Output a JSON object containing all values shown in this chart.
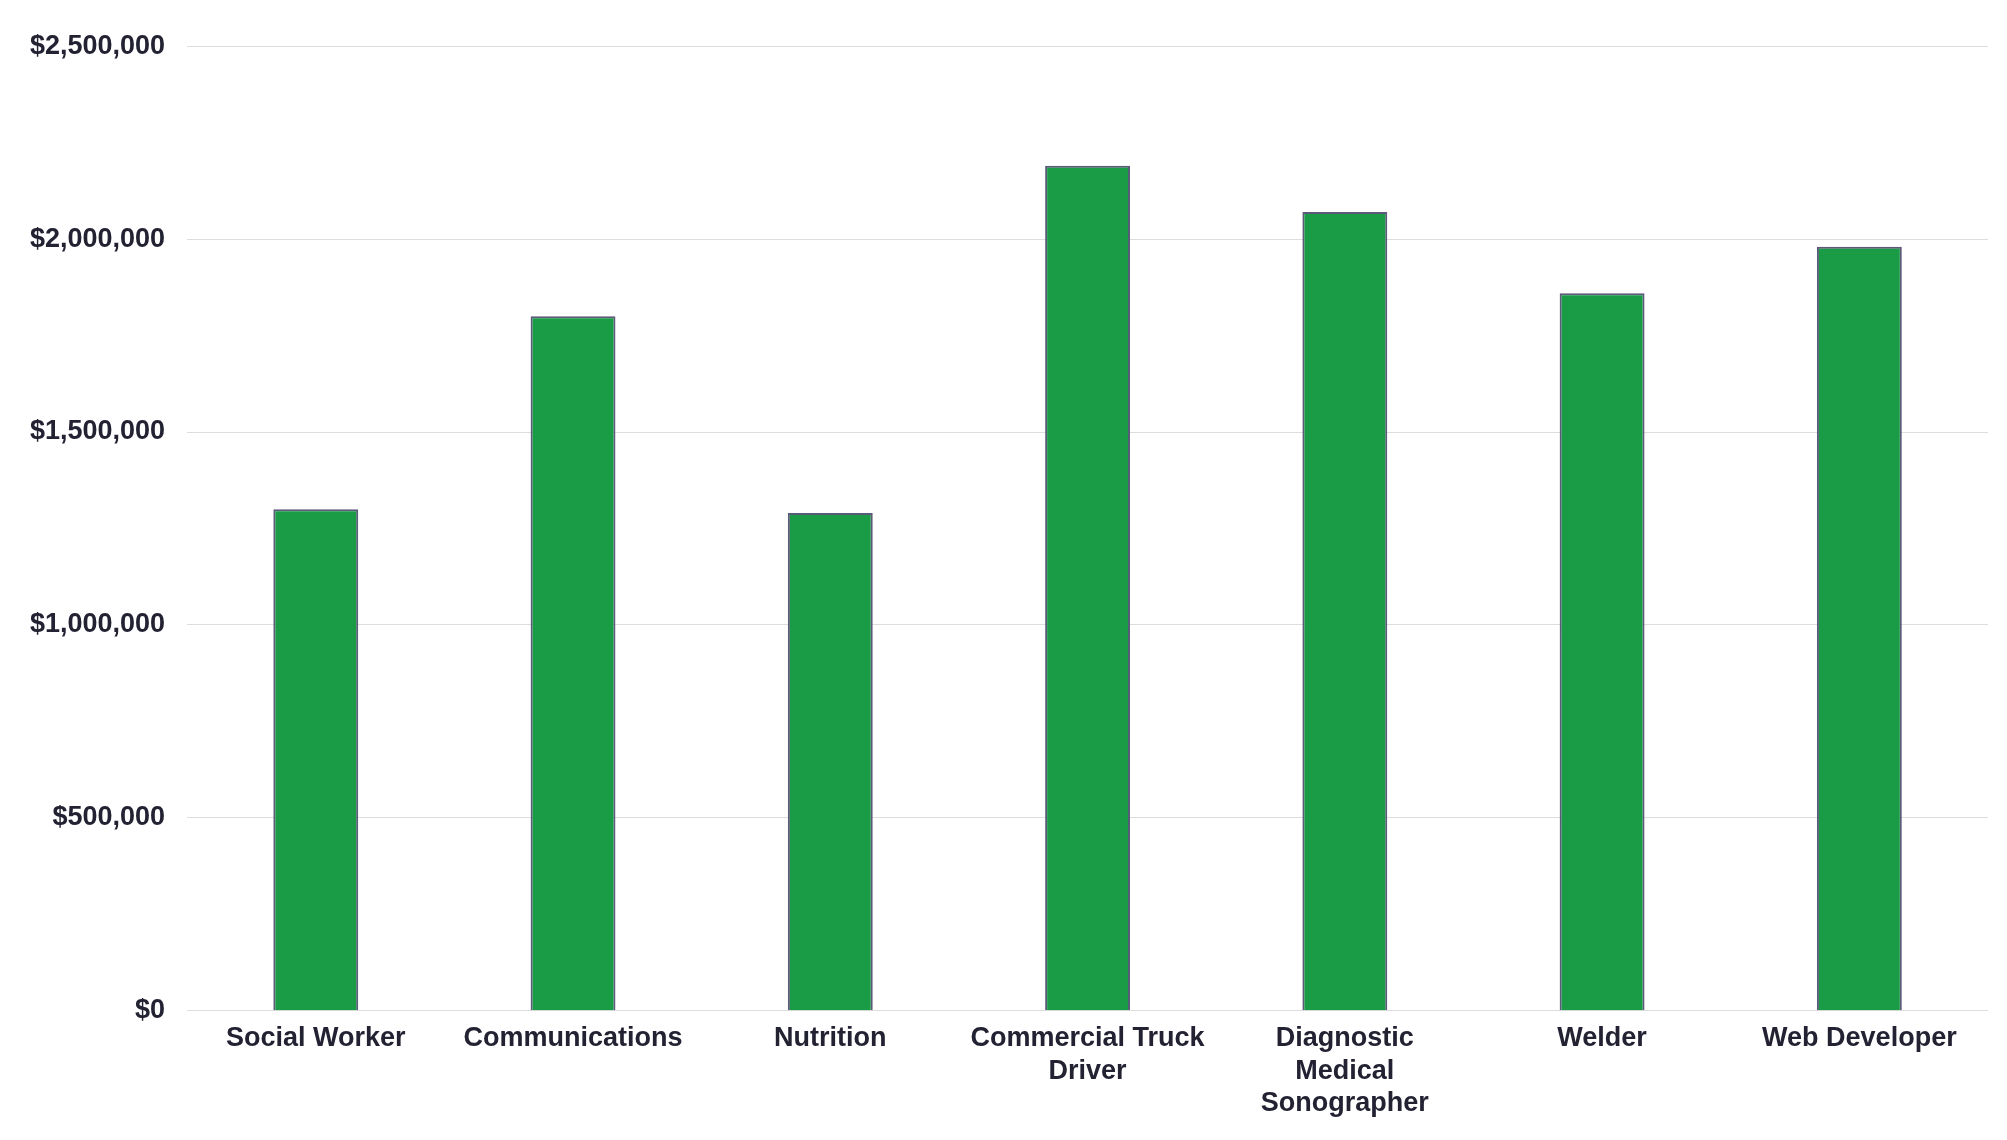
{
  "chart_data": {
    "type": "bar",
    "categories": [
      "Social Worker",
      "Communications",
      "Nutrition",
      "Commercial Truck Driver",
      "Diagnostic Medical Sonographer",
      "Welder",
      "Web Developer"
    ],
    "values": [
      1300000,
      1800000,
      1290000,
      2190000,
      2070000,
      1860000,
      1980000
    ],
    "color": "#1a9c47",
    "ylim": [
      0,
      2500000
    ],
    "yticks": [
      {
        "value": 0,
        "label": "$0"
      },
      {
        "value": 500000,
        "label": "$500,000"
      },
      {
        "value": 1000000,
        "label": "$1,000,000"
      },
      {
        "value": 1500000,
        "label": "$1,500,000"
      },
      {
        "value": 2000000,
        "label": "$2,000,000"
      },
      {
        "value": 2500000,
        "label": "$2,500,000"
      }
    ],
    "grid": "y",
    "legend": false
  }
}
